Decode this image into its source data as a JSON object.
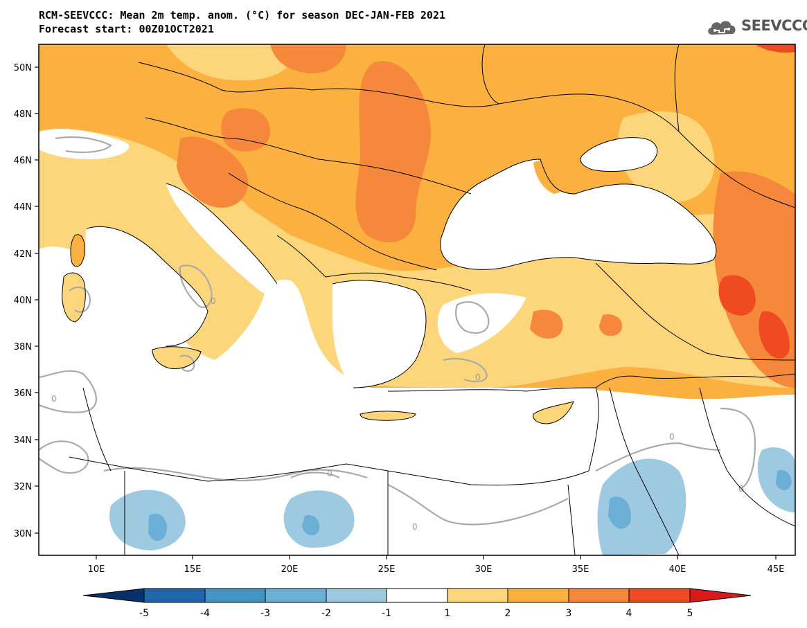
{
  "header": {
    "title_line1": "RCM-SEEVCCC: Mean 2m temp. anom. (°C) for season DEC-JAN-FEB 2021",
    "title_line2": "Forecast start: 00Z01OCT2021"
  },
  "logo": {
    "text": "SEEVCCC",
    "icon": "cloud-icon"
  },
  "map": {
    "lon_ticks": [
      "10E",
      "15E",
      "20E",
      "25E",
      "30E",
      "35E",
      "40E",
      "45E"
    ],
    "lat_ticks": [
      "50N",
      "48N",
      "46N",
      "44N",
      "42N",
      "40N",
      "38N",
      "36N",
      "34N",
      "32N",
      "30N"
    ],
    "contour_label": "0"
  },
  "colorbar": {
    "labels": [
      "-5",
      "-4",
      "-3",
      "-2",
      "-1",
      "1",
      "2",
      "3",
      "4",
      "5"
    ],
    "colors": [
      "#08306b",
      "#2166ac",
      "#4393c3",
      "#6baed6",
      "#9ecae1",
      "#ffffff",
      "#fdd57a",
      "#fbb040",
      "#f6883b",
      "#f04a22",
      "#d7191c"
    ]
  },
  "colors": {
    "land_low": "#fdd57a",
    "land_mid": "#fbb040",
    "land_high": "#f6883b",
    "land_very_high": "#f04a22",
    "cold_light": "#9ecae1",
    "cold_mid": "#6baed6",
    "contour_zero": "#aaaaaa",
    "border": "#000000"
  }
}
